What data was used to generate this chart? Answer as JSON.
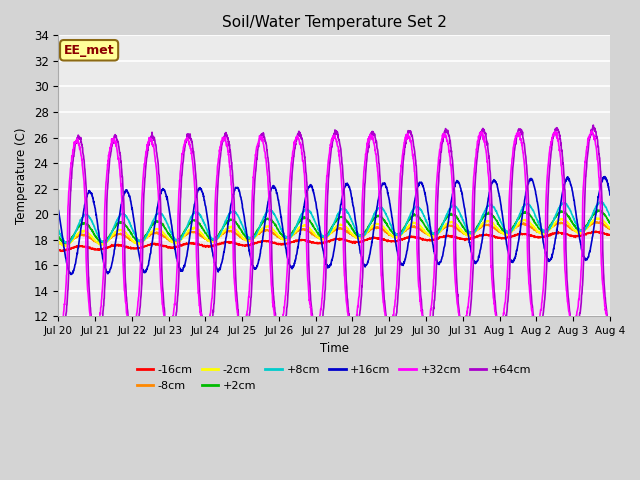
{
  "title": "Soil/Water Temperature Set 2",
  "xlabel": "Time",
  "ylabel": "Temperature (C)",
  "ylim": [
    12,
    34
  ],
  "yticks": [
    12,
    14,
    16,
    18,
    20,
    22,
    24,
    26,
    28,
    30,
    32,
    34
  ],
  "plot_bg_color": "#ebebeb",
  "fig_bg_color": "#d4d4d4",
  "annotation_text": "EE_met",
  "series": {
    "-16cm": {
      "color": "#ff0000",
      "lw": 1.2,
      "base": 17.3,
      "trend": 0.08,
      "amp": 0.15,
      "phase_shift": 0.0
    },
    "-8cm": {
      "color": "#ff8800",
      "lw": 1.2,
      "base": 18.0,
      "trend": 0.07,
      "amp": 0.35,
      "phase_shift": 0.05
    },
    "-2cm": {
      "color": "#ffff00",
      "lw": 1.2,
      "base": 18.1,
      "trend": 0.07,
      "amp": 0.55,
      "phase_shift": 0.08
    },
    "+2cm": {
      "color": "#00bb00",
      "lw": 1.2,
      "base": 18.5,
      "trend": 0.07,
      "amp": 0.75,
      "phase_shift": 0.1
    },
    "+8cm": {
      "color": "#00cccc",
      "lw": 1.2,
      "base": 18.8,
      "trend": 0.07,
      "amp": 1.1,
      "phase_shift": 0.15
    },
    "+16cm": {
      "color": "#0000cc",
      "lw": 1.2,
      "base": 18.5,
      "trend": 0.08,
      "amp": 3.2,
      "phase_shift": 0.3
    },
    "+32cm": {
      "color": "#ff00ff",
      "lw": 1.2,
      "base": 18.2,
      "trend": 0.05,
      "amp": 7.5,
      "phase_shift": 0.0
    },
    "+64cm": {
      "color": "#aa00cc",
      "lw": 1.2,
      "base": 18.0,
      "trend": 0.05,
      "amp": 8.0,
      "phase_shift": 0.05
    }
  },
  "n_days": 15,
  "points_per_day": 144,
  "xtick_labels": [
    "Jul 20",
    "Jul 21",
    "Jul 22",
    "Jul 23",
    "Jul 24",
    "Jul 25",
    "Jul 26",
    "Jul 27",
    "Jul 28",
    "Jul 29",
    "Jul 30",
    "Jul 31",
    "Aug 1",
    "Aug 2",
    "Aug 3",
    "Aug 4"
  ],
  "legend_order": [
    "-16cm",
    "-8cm",
    "-2cm",
    "+2cm",
    "+8cm",
    "+16cm",
    "+32cm",
    "+64cm"
  ]
}
